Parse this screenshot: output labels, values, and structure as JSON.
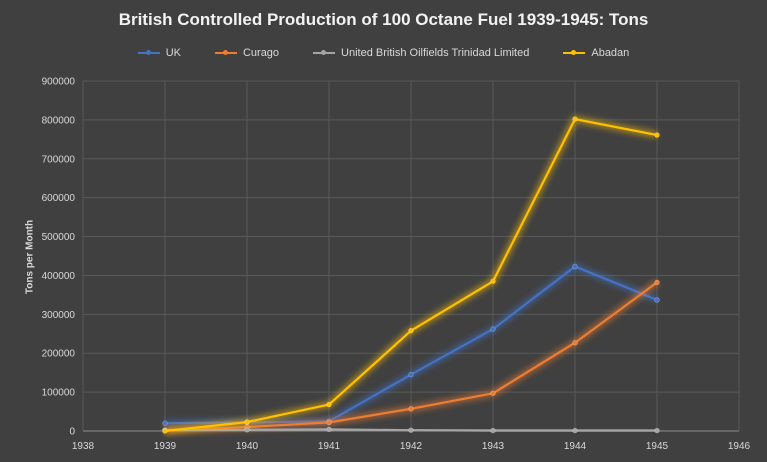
{
  "chart_data": {
    "type": "scatter",
    "title": "British Controlled Production of 100 Octane Fuel 1939-1945: Tons",
    "xlabel": "",
    "ylabel": "Tons per Month",
    "xlim": [
      1938,
      1946
    ],
    "ylim": [
      0,
      900000
    ],
    "x_ticks": [
      "1938",
      "1939",
      "1940",
      "1941",
      "1942",
      "1943",
      "1944",
      "1945",
      "1946"
    ],
    "y_ticks": [
      "0",
      "100000",
      "200000",
      "300000",
      "400000",
      "500000",
      "600000",
      "700000",
      "800000",
      "900000"
    ],
    "grid": true,
    "legend_position": "top",
    "series": [
      {
        "name": "UK",
        "color": "#4472C4",
        "points": [
          [
            1939,
            20000
          ],
          [
            1940,
            22000
          ],
          [
            1941,
            25000
          ],
          [
            1942,
            145000
          ],
          [
            1943,
            262000
          ],
          [
            1944,
            423000
          ],
          [
            1945,
            337000
          ]
        ]
      },
      {
        "name": "Curago",
        "color": "#ED7D31",
        "points": [
          [
            1939,
            2000
          ],
          [
            1940,
            10000
          ],
          [
            1941,
            22000
          ],
          [
            1942,
            57000
          ],
          [
            1943,
            97000
          ],
          [
            1944,
            227000
          ],
          [
            1945,
            382000
          ]
        ]
      },
      {
        "name": "United British Oilfields Trinidad Limited",
        "color": "#A5A5A5",
        "points": [
          [
            1939,
            2000
          ],
          [
            1940,
            3000
          ],
          [
            1941,
            4000
          ],
          [
            1942,
            2000
          ],
          [
            1943,
            1000
          ],
          [
            1944,
            1000
          ],
          [
            1945,
            1000
          ]
        ]
      },
      {
        "name": "Abadan",
        "color": "#FFC000",
        "points": [
          [
            1939,
            0
          ],
          [
            1940,
            23000
          ],
          [
            1941,
            68000
          ],
          [
            1942,
            258000
          ],
          [
            1943,
            385000
          ],
          [
            1944,
            802000
          ],
          [
            1945,
            761000
          ]
        ]
      }
    ]
  }
}
